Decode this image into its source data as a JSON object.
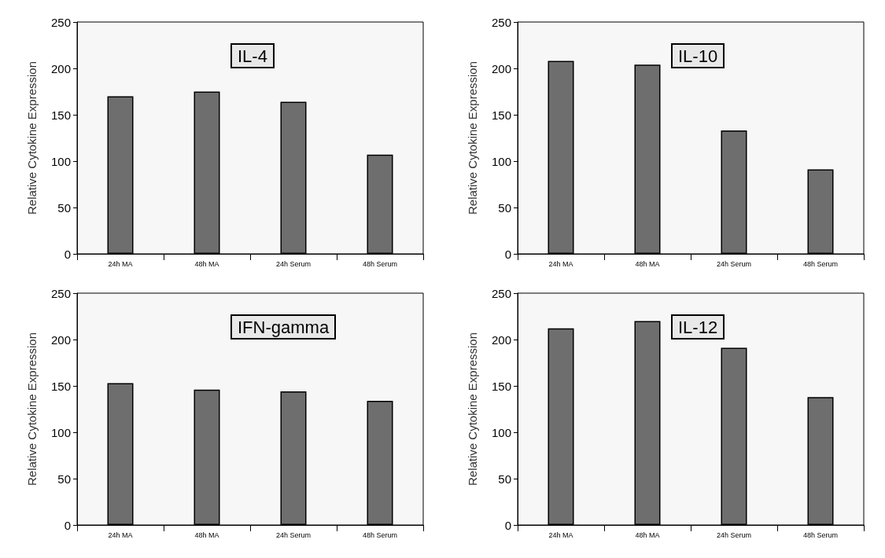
{
  "chart_data": [
    {
      "type": "bar",
      "title": "IL-4",
      "ylabel": "Relative Cytokine Expression",
      "categories": [
        "24h MA",
        "48h MA",
        "24h Serum",
        "48h Serum"
      ],
      "values": [
        170,
        175,
        164,
        107
      ],
      "color": "#6e6e6e",
      "ylim": [
        0,
        250
      ],
      "yticks": [
        0,
        50,
        100,
        150,
        200,
        250
      ],
      "grid": false
    },
    {
      "type": "bar",
      "title": "IL-10",
      "ylabel": "Relative Cytokine Expression",
      "categories": [
        "24h MA",
        "48h MA",
        "24h Serum",
        "48h Serum"
      ],
      "values": [
        208,
        204,
        133,
        91
      ],
      "color": "#6e6e6e",
      "ylim": [
        0,
        250
      ],
      "yticks": [
        0,
        50,
        100,
        150,
        200,
        250
      ],
      "grid": false
    },
    {
      "type": "bar",
      "title": "IFN-gamma",
      "ylabel": "Relative Cytokine Expression",
      "categories": [
        "24h MA",
        "48h MA",
        "24h Serum",
        "48h Serum"
      ],
      "values": [
        153,
        146,
        144,
        134
      ],
      "color": "#6e6e6e",
      "ylim": [
        0,
        250
      ],
      "yticks": [
        0,
        50,
        100,
        150,
        200,
        250
      ],
      "grid": false
    },
    {
      "type": "bar",
      "title": "IL-12",
      "ylabel": "Relative Cytokine Expression",
      "categories": [
        "24h MA",
        "48h MA",
        "24h Serum",
        "48h Serum"
      ],
      "values": [
        212,
        220,
        191,
        138
      ],
      "color": "#6e6e6e",
      "ylim": [
        0,
        250
      ],
      "yticks": [
        0,
        50,
        100,
        150,
        200,
        250
      ],
      "grid": false
    }
  ]
}
